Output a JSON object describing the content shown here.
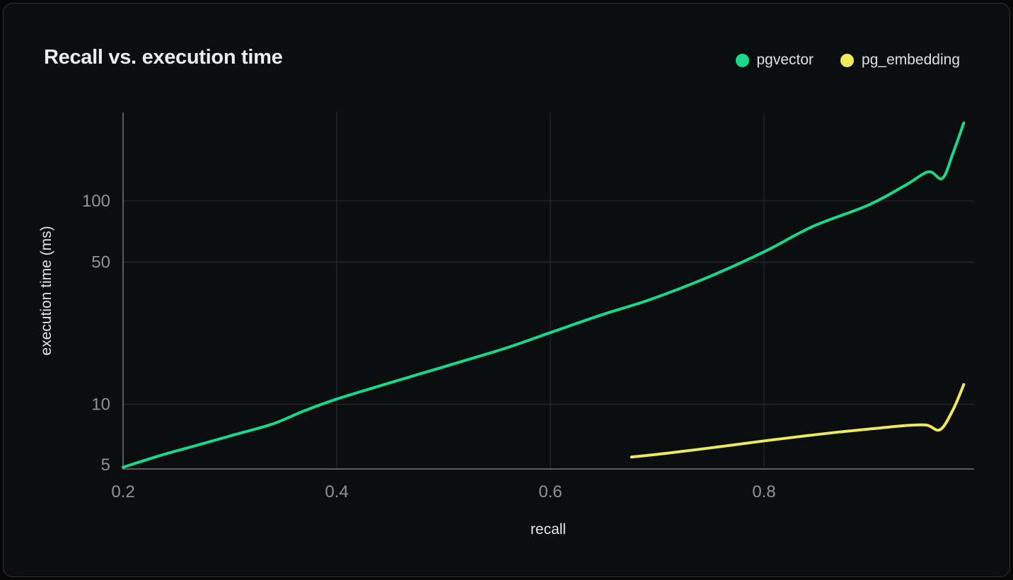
{
  "window": {
    "background": "#060607"
  },
  "card": {
    "background": "#0c0d0f",
    "border_color": "#2f333a"
  },
  "header": {
    "title": "Recall vs. execution time"
  },
  "chart_data": {
    "type": "line",
    "title": "Recall vs. execution time",
    "xlabel": "recall",
    "ylabel": "execution time (ms)",
    "x_scale": "linear",
    "y_scale": "log",
    "xlim": [
      0.2,
      0.997
    ],
    "ylim": [
      4.8,
      272
    ],
    "x_tick_values": [
      0.2,
      0.4,
      0.6,
      0.8
    ],
    "x_tick_labels": [
      "0.2",
      "0.4",
      "0.6",
      "0.8"
    ],
    "y_tick_values": [
      5,
      10,
      50,
      100
    ],
    "y_tick_labels": [
      "5",
      "10",
      "50",
      "100"
    ],
    "grid": true,
    "legend_position": "top-right",
    "grid_color": "#2b2d32",
    "axis_color": "#74777f",
    "tick_label_color": "#8f939a",
    "axis_title_color": "#e2e4e8",
    "series": [
      {
        "name": "pgvector",
        "color": "#18d98b",
        "points": [
          [
            0.2,
            4.9
          ],
          [
            0.235,
            5.6
          ],
          [
            0.27,
            6.3
          ],
          [
            0.305,
            7.1
          ],
          [
            0.34,
            8.0
          ],
          [
            0.37,
            9.3
          ],
          [
            0.4,
            10.6
          ],
          [
            0.44,
            12.3
          ],
          [
            0.48,
            14.2
          ],
          [
            0.52,
            16.4
          ],
          [
            0.56,
            19.0
          ],
          [
            0.6,
            22.5
          ],
          [
            0.648,
            27.5
          ],
          [
            0.694,
            32.8
          ],
          [
            0.747,
            42.0
          ],
          [
            0.801,
            56.5
          ],
          [
            0.846,
            75.0
          ],
          [
            0.897,
            95.0
          ],
          [
            0.932,
            119.0
          ],
          [
            0.954,
            139.0
          ],
          [
            0.967,
            129.0
          ],
          [
            0.977,
            172.0
          ],
          [
            0.987,
            242.0
          ]
        ]
      },
      {
        "name": "pg_embedding",
        "color": "#edea5e",
        "points": [
          [
            0.676,
            5.5
          ],
          [
            0.71,
            5.75
          ],
          [
            0.75,
            6.1
          ],
          [
            0.79,
            6.5
          ],
          [
            0.83,
            6.9
          ],
          [
            0.87,
            7.3
          ],
          [
            0.904,
            7.6
          ],
          [
            0.932,
            7.85
          ],
          [
            0.952,
            7.9
          ],
          [
            0.965,
            7.5
          ],
          [
            0.977,
            9.4
          ],
          [
            0.987,
            12.5
          ]
        ]
      }
    ]
  }
}
